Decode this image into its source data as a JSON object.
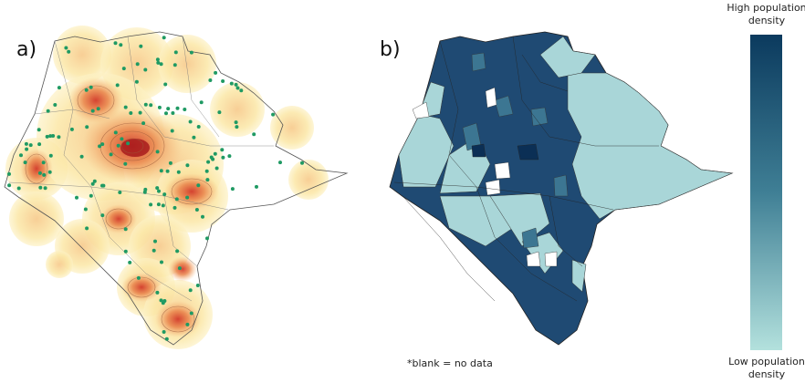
{
  "panel_a": {
    "label": "a)"
  },
  "panel_b": {
    "label": "b)"
  },
  "legend": {
    "high": "High population density",
    "low": "Low population density"
  },
  "note": "*blank =  no data"
}
